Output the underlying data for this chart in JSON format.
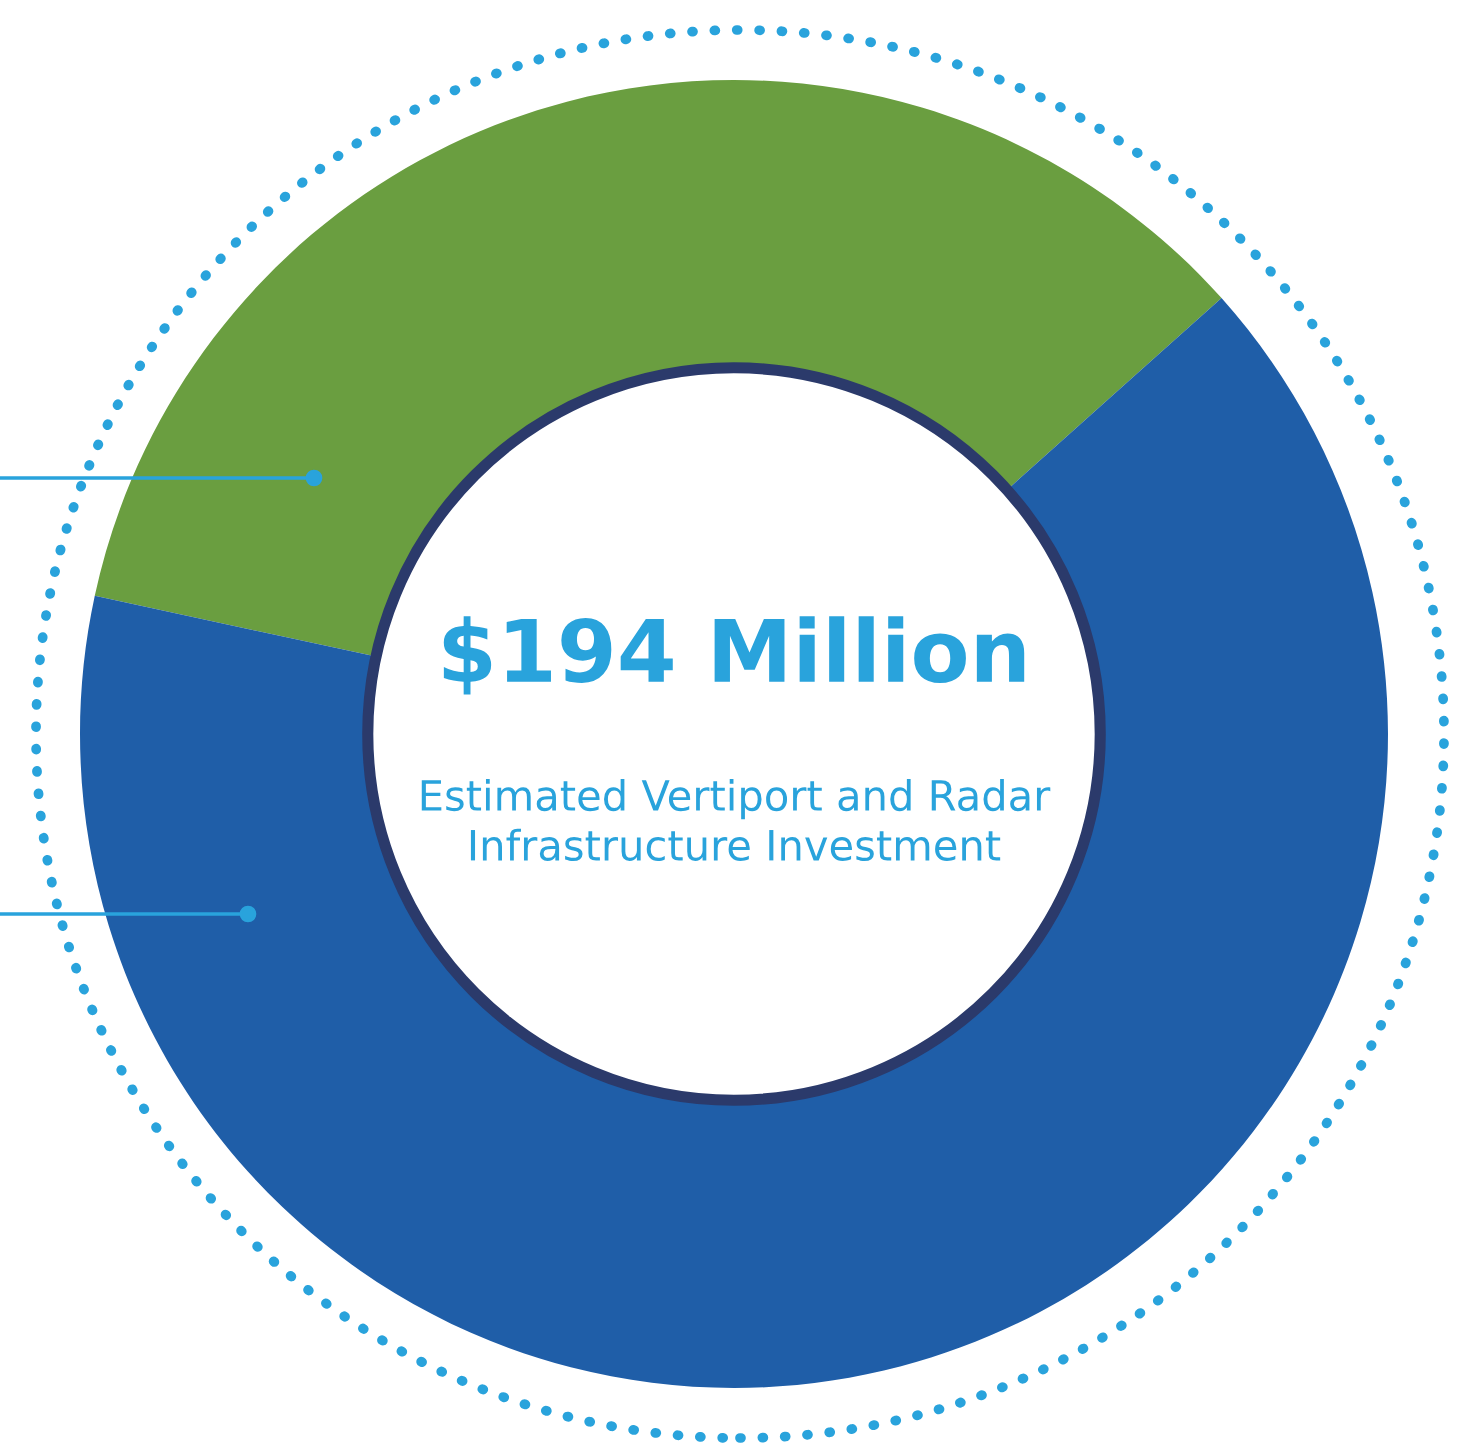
{
  "chart_data": {
    "type": "donut",
    "categories": [
      null,
      null
    ],
    "values": [
      35,
      65
    ],
    "colors": [
      "#6a9e40",
      "#1f5ea8"
    ],
    "title": "$194 Million",
    "subtitle": "Estimated Vertiport and Radar Infrastructure Investment"
  }
}
